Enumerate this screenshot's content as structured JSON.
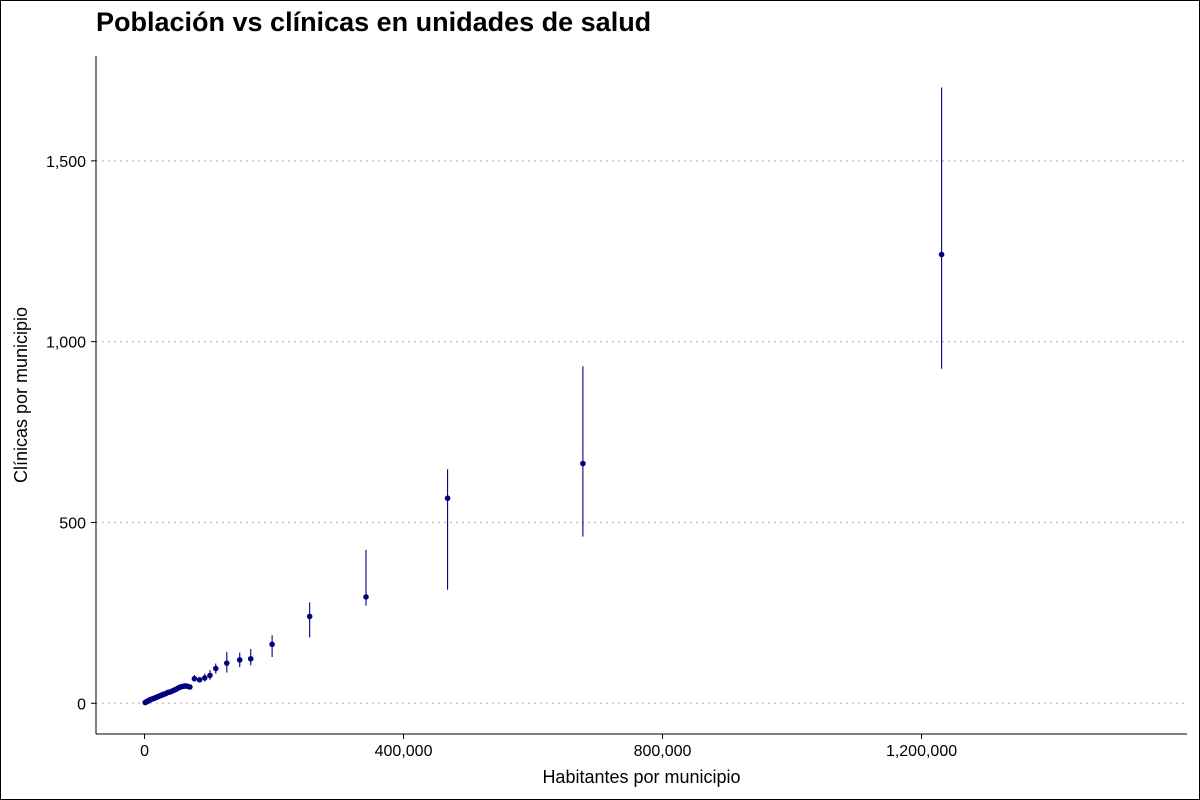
{
  "chart_data": {
    "type": "scatter",
    "title": "Población vs clínicas en unidades de salud",
    "xlabel": "Habitantes por municipio",
    "ylabel": "Clínicas por municipio",
    "xlim": [
      -75000,
      1610000
    ],
    "ylim": [
      -85,
      1790
    ],
    "xticks": [
      0,
      400000,
      800000,
      1200000
    ],
    "xtick_labels": [
      "0",
      "400,000",
      "800,000",
      "1,200,000"
    ],
    "yticks": [
      0,
      500,
      1000,
      1500
    ],
    "ytick_labels": [
      "0",
      "500",
      "1,000",
      "1,500"
    ],
    "grid": "horizontal dotted",
    "colors": {
      "points": "#00007f",
      "errorbars": "#00007f",
      "grid": "#c8c8c8",
      "axis": "#000000"
    },
    "points": [
      {
        "x": 1000,
        "y": 2
      },
      {
        "x": 2000,
        "y": 3
      },
      {
        "x": 3000,
        "y": 4
      },
      {
        "x": 4000,
        "y": 5
      },
      {
        "x": 5000,
        "y": 6
      },
      {
        "x": 6000,
        "y": 7
      },
      {
        "x": 7000,
        "y": 8
      },
      {
        "x": 8000,
        "y": 9
      },
      {
        "x": 9000,
        "y": 10
      },
      {
        "x": 10000,
        "y": 11
      },
      {
        "x": 12000,
        "y": 12
      },
      {
        "x": 14000,
        "y": 13
      },
      {
        "x": 16000,
        "y": 15
      },
      {
        "x": 18000,
        "y": 16
      },
      {
        "x": 20000,
        "y": 18
      },
      {
        "x": 22000,
        "y": 19
      },
      {
        "x": 24000,
        "y": 21
      },
      {
        "x": 26000,
        "y": 22
      },
      {
        "x": 28000,
        "y": 24
      },
      {
        "x": 30000,
        "y": 25
      },
      {
        "x": 33000,
        "y": 27
      },
      {
        "x": 36000,
        "y": 30
      },
      {
        "x": 39000,
        "y": 31
      },
      {
        "x": 42000,
        "y": 33
      },
      {
        "x": 45000,
        "y": 36
      },
      {
        "x": 48000,
        "y": 38
      },
      {
        "x": 51000,
        "y": 41
      },
      {
        "x": 54000,
        "y": 44
      },
      {
        "x": 57000,
        "y": 46
      },
      {
        "x": 60000,
        "y": 47
      },
      {
        "x": 63000,
        "y": 48
      },
      {
        "x": 66000,
        "y": 47
      },
      {
        "x": 70000,
        "y": 45
      },
      {
        "x": 77000,
        "y": 68
      },
      {
        "x": 85000,
        "y": 65
      },
      {
        "x": 93000,
        "y": 70
      },
      {
        "x": 101000,
        "y": 77
      },
      {
        "x": 110000,
        "y": 96
      },
      {
        "x": 127000,
        "y": 111
      },
      {
        "x": 147000,
        "y": 120
      },
      {
        "x": 164000,
        "y": 123
      },
      {
        "x": 197000,
        "y": 163
      },
      {
        "x": 255000,
        "y": 240
      },
      {
        "x": 342000,
        "y": 294
      },
      {
        "x": 468000,
        "y": 567
      },
      {
        "x": 677000,
        "y": 663
      },
      {
        "x": 1231000,
        "y": 1241
      }
    ],
    "errorbars": [
      {
        "x": 77000,
        "low": 60,
        "high": 78
      },
      {
        "x": 93000,
        "low": 60,
        "high": 82
      },
      {
        "x": 101000,
        "low": 65,
        "high": 92
      },
      {
        "x": 110000,
        "low": 82,
        "high": 110
      },
      {
        "x": 127000,
        "low": 85,
        "high": 142
      },
      {
        "x": 147000,
        "low": 100,
        "high": 140
      },
      {
        "x": 164000,
        "low": 105,
        "high": 150
      },
      {
        "x": 197000,
        "low": 128,
        "high": 188
      },
      {
        "x": 255000,
        "low": 182,
        "high": 279
      },
      {
        "x": 342000,
        "low": 270,
        "high": 424
      },
      {
        "x": 468000,
        "low": 314,
        "high": 647
      },
      {
        "x": 677000,
        "low": 461,
        "high": 932
      },
      {
        "x": 1231000,
        "low": 925,
        "high": 1703
      }
    ]
  }
}
